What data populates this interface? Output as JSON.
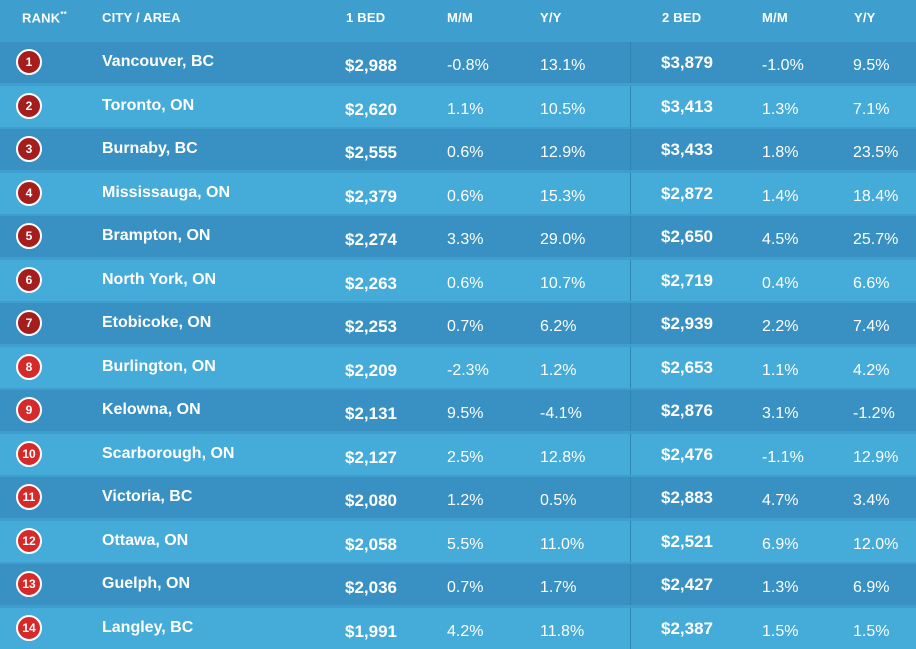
{
  "header": {
    "rank": "RANK",
    "rank_sup": "**",
    "city": "CITY / AREA",
    "bed1": "1 BED",
    "mm1": "M/M",
    "yy1": "Y/Y",
    "bed2": "2 BED",
    "mm2": "M/M",
    "yy2": "Y/Y"
  },
  "rows": [
    {
      "rank": "1",
      "city": "Vancouver, BC",
      "bed1": "$2,988",
      "mm1": "-0.8%",
      "yy1": "13.1%",
      "bed2": "$3,879",
      "mm2": "-1.0%",
      "yy2": "9.5%"
    },
    {
      "rank": "2",
      "city": "Toronto, ON",
      "bed1": "$2,620",
      "mm1": "1.1%",
      "yy1": "10.5%",
      "bed2": "$3,413",
      "mm2": "1.3%",
      "yy2": "7.1%"
    },
    {
      "rank": "3",
      "city": "Burnaby, BC",
      "bed1": "$2,555",
      "mm1": "0.6%",
      "yy1": "12.9%",
      "bed2": "$3,433",
      "mm2": "1.8%",
      "yy2": "23.5%"
    },
    {
      "rank": "4",
      "city": "Mississauga, ON",
      "bed1": "$2,379",
      "mm1": "0.6%",
      "yy1": "15.3%",
      "bed2": "$2,872",
      "mm2": "1.4%",
      "yy2": "18.4%"
    },
    {
      "rank": "5",
      "city": "Brampton, ON",
      "bed1": "$2,274",
      "mm1": "3.3%",
      "yy1": "29.0%",
      "bed2": "$2,650",
      "mm2": "4.5%",
      "yy2": "25.7%"
    },
    {
      "rank": "6",
      "city": "North York, ON",
      "bed1": "$2,263",
      "mm1": "0.6%",
      "yy1": "10.7%",
      "bed2": "$2,719",
      "mm2": "0.4%",
      "yy2": "6.6%"
    },
    {
      "rank": "7",
      "city": "Etobicoke, ON",
      "bed1": "$2,253",
      "mm1": "0.7%",
      "yy1": "6.2%",
      "bed2": "$2,939",
      "mm2": "2.2%",
      "yy2": "7.4%"
    },
    {
      "rank": "8",
      "city": "Burlington, ON",
      "bed1": "$2,209",
      "mm1": "-2.3%",
      "yy1": "1.2%",
      "bed2": "$2,653",
      "mm2": "1.1%",
      "yy2": "4.2%"
    },
    {
      "rank": "9",
      "city": "Kelowna, ON",
      "bed1": "$2,131",
      "mm1": "9.5%",
      "yy1": "-4.1%",
      "bed2": "$2,876",
      "mm2": "3.1%",
      "yy2": "-1.2%"
    },
    {
      "rank": "10",
      "city": "Scarborough, ON",
      "bed1": "$2,127",
      "mm1": "2.5%",
      "yy1": "12.8%",
      "bed2": "$2,476",
      "mm2": "-1.1%",
      "yy2": "12.9%"
    },
    {
      "rank": "11",
      "city": "Victoria, BC",
      "bed1": "$2,080",
      "mm1": "1.2%",
      "yy1": "0.5%",
      "bed2": "$2,883",
      "mm2": "4.7%",
      "yy2": "3.4%"
    },
    {
      "rank": "12",
      "city": "Ottawa, ON",
      "bed1": "$2,058",
      "mm1": "5.5%",
      "yy1": "11.0%",
      "bed2": "$2,521",
      "mm2": "6.9%",
      "yy2": "12.0%"
    },
    {
      "rank": "13",
      "city": "Guelph, ON",
      "bed1": "$2,036",
      "mm1": "0.7%",
      "yy1": "1.7%",
      "bed2": "$2,427",
      "mm2": "1.3%",
      "yy2": "6.9%"
    },
    {
      "rank": "14",
      "city": "Langley, BC",
      "bed1": "$1,991",
      "mm1": "4.2%",
      "yy1": "11.8%",
      "bed2": "$2,387",
      "mm2": "1.5%",
      "yy2": "1.5%"
    }
  ],
  "colors": {
    "header_bg": "#3e9fcf",
    "row_dark": "#3891c2",
    "row_light": "#45abd8",
    "badge_red": "#d62a2a",
    "badge_dark_red": "#a51d1d",
    "text": "#ffffff"
  }
}
